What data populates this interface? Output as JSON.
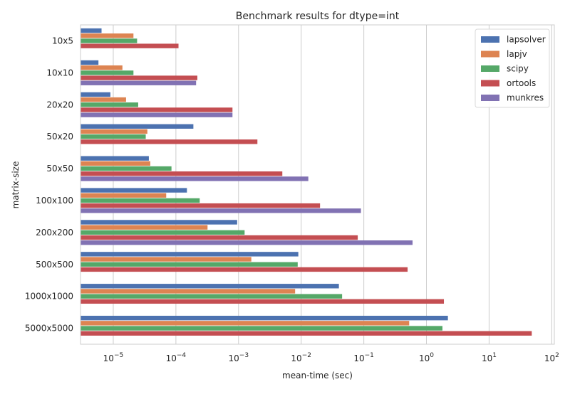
{
  "chart_data": {
    "type": "bar",
    "orientation": "horizontal",
    "title": "Benchmark results for dtype=int",
    "xlabel": "mean-time (sec)",
    "ylabel": "matrix-size",
    "xscale": "log",
    "xlim": [
      3e-06,
      110
    ],
    "grid": true,
    "legend_position": "top-right",
    "categories": [
      "10x5",
      "10x10",
      "20x20",
      "50x20",
      "50x50",
      "100x100",
      "200x200",
      "500x500",
      "1000x1000",
      "5000x5000"
    ],
    "x_ticks": [
      {
        "base": "10",
        "exp": "−5",
        "value": 1e-05
      },
      {
        "base": "10",
        "exp": "−4",
        "value": 0.0001
      },
      {
        "base": "10",
        "exp": "−3",
        "value": 0.001
      },
      {
        "base": "10",
        "exp": "−2",
        "value": 0.01
      },
      {
        "base": "10",
        "exp": "−1",
        "value": 0.1
      },
      {
        "base": "10",
        "exp": "0",
        "value": 1
      },
      {
        "base": "10",
        "exp": "1",
        "value": 10
      },
      {
        "base": "10",
        "exp": "2",
        "value": 100
      }
    ],
    "series": [
      {
        "name": "lapsolver",
        "color": "#4c72b0",
        "values": [
          6.5e-06,
          5.8e-06,
          9e-06,
          0.00019,
          3.7e-05,
          0.00015,
          0.00095,
          0.009,
          0.04,
          2.2
        ]
      },
      {
        "name": "lapjv",
        "color": "#dd8452",
        "values": [
          2.1e-05,
          1.4e-05,
          1.6e-05,
          3.5e-05,
          3.9e-05,
          7e-05,
          0.00032,
          0.0016,
          0.008,
          0.53
        ]
      },
      {
        "name": "scipy",
        "color": "#55a868",
        "values": [
          2.4e-05,
          2.1e-05,
          2.5e-05,
          3.3e-05,
          8.5e-05,
          0.00024,
          0.00125,
          0.0088,
          0.045,
          1.8
        ]
      },
      {
        "name": "ortools",
        "color": "#c44e52",
        "values": [
          0.00011,
          0.00022,
          0.0008,
          0.002,
          0.005,
          0.02,
          0.08,
          0.5,
          1.9,
          48
        ]
      },
      {
        "name": "munkres",
        "color": "#8172b3",
        "values": [
          null,
          0.00021,
          0.0008,
          null,
          0.013,
          0.09,
          0.6,
          null,
          null,
          null
        ]
      }
    ]
  }
}
